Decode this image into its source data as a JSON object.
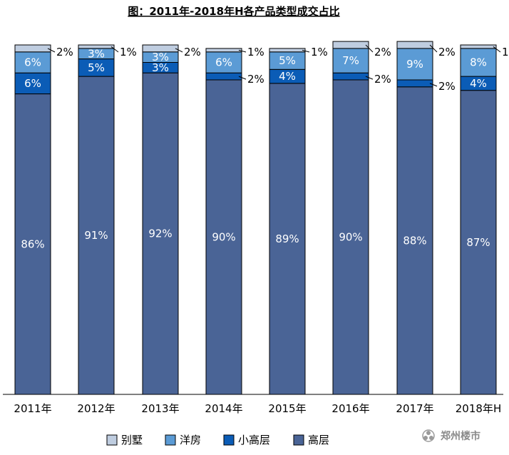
{
  "chart_data": {
    "type": "bar",
    "stacked": true,
    "title": "图：2011年-2018年H各产品类型成交占比",
    "categories": [
      "2011年",
      "2012年",
      "2013年",
      "2014年",
      "2015年",
      "2016年",
      "2017年",
      "2018年H"
    ],
    "series": [
      {
        "name": "高层",
        "values": [
          86,
          91,
          92,
          90,
          89,
          90,
          88,
          87
        ],
        "labels": [
          "86%",
          "91%",
          "92%",
          "90%",
          "89%",
          "90%",
          "88%",
          "87%"
        ],
        "color": "#4a6496"
      },
      {
        "name": "小高层",
        "values": [
          6,
          5,
          3,
          2,
          4,
          2,
          2,
          4
        ],
        "labels": [
          "6%",
          "5%",
          "3%",
          "2%",
          "4%",
          "2%",
          "2%",
          "4%"
        ],
        "color": "#0b5cb6"
      },
      {
        "name": "洋房",
        "values": [
          6,
          3,
          3,
          6,
          5,
          7,
          9,
          8
        ],
        "labels": [
          "6%",
          "3%",
          "3%",
          "6%",
          "5%",
          "7%",
          "9%",
          "8%"
        ],
        "color": "#5b9bd5"
      },
      {
        "name": "别墅",
        "values": [
          2,
          1,
          2,
          1,
          1,
          2,
          2,
          1
        ],
        "labels": [
          "2%",
          "1%",
          "2%",
          "1%",
          "1%",
          "2%",
          "2%",
          "1%"
        ],
        "color": "#bfcde0"
      }
    ],
    "ylim": [
      0,
      100
    ],
    "grid": false,
    "legend": "bottom",
    "legend_order": [
      "别墅",
      "洋房",
      "小高层",
      "高层"
    ]
  },
  "watermark": {
    "text": "郑州楼市"
  }
}
